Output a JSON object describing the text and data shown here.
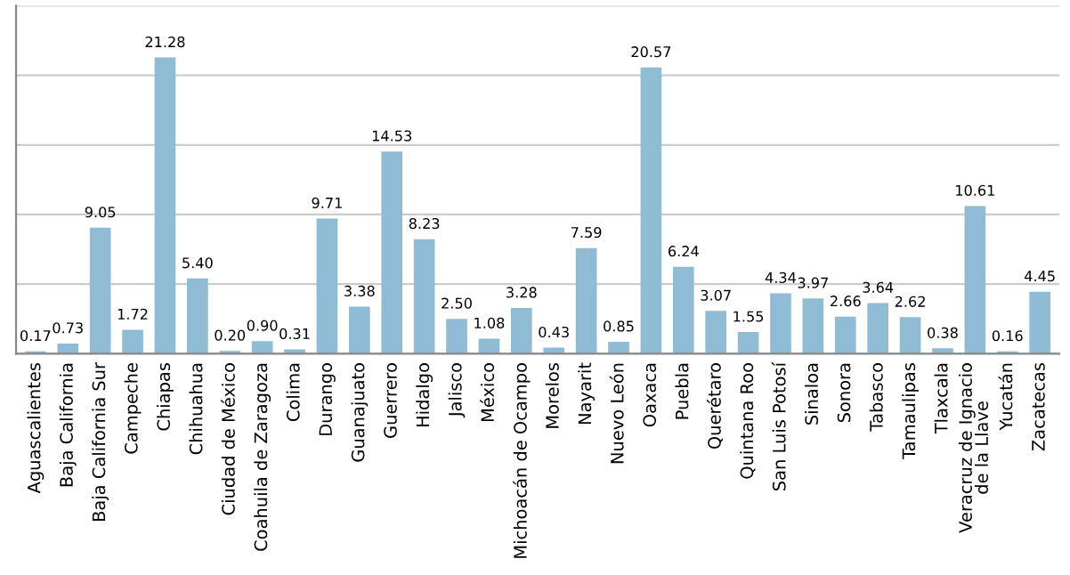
{
  "chart_data": {
    "type": "bar",
    "categories": [
      "Aguascalientes",
      "Baja California",
      "Baja California Sur",
      "Campeche",
      "Chiapas",
      "Chihuahua",
      "Ciudad de México",
      "Coahuila de Zaragoza",
      "Colima",
      "Durango",
      "Guanajuato",
      "Guerrero",
      "Hidalgo",
      "Jalisco",
      "México",
      "Michoacán de Ocampo",
      "Morelos",
      "Nayarit",
      "Nuevo León",
      "Oaxaca",
      "Puebla",
      "Querétaro",
      "Quintana Roo",
      "San Luis Potosí",
      "Sinaloa",
      "Sonora",
      "Tabasco",
      "Tamaulipas",
      "Tlaxcala",
      "Veracruz de Ignacio\nde la Llave",
      "Yucatán",
      "Zacatecas"
    ],
    "values": [
      0.17,
      0.73,
      9.05,
      1.72,
      21.28,
      5.4,
      0.2,
      0.9,
      0.31,
      9.71,
      3.38,
      14.53,
      8.23,
      2.5,
      1.08,
      3.28,
      0.43,
      7.59,
      0.85,
      20.57,
      6.24,
      3.07,
      1.55,
      4.34,
      3.97,
      2.66,
      3.64,
      2.62,
      0.38,
      10.61,
      0.16,
      4.45
    ],
    "value_labels": [
      "0.17",
      "0.73",
      "9.05",
      "1.72",
      "21.28",
      "5.40",
      "0.20",
      "0.90",
      "0.31",
      "9.71",
      "3.38",
      "14.53",
      "8.23",
      "2.50",
      "1.08",
      "3.28",
      "0.43",
      "7.59",
      "0.85",
      "20.57",
      "6.24",
      "3.07",
      "1.55",
      "4.34",
      "3.97",
      "2.66",
      "3.64",
      "2.62",
      "0.38",
      "10.61",
      "0.16",
      "4.45"
    ],
    "color": "#8fbcd4",
    "ylim": [
      0,
      25
    ],
    "yticks": [
      {
        "value": 0,
        "label": null
      },
      {
        "value": 5,
        "label": null
      },
      {
        "value": 10,
        "label": null
      },
      {
        "value": 15,
        "label": null
      },
      {
        "value": 20,
        "label": null
      },
      {
        "value": 25,
        "label": null
      }
    ],
    "grid": "y",
    "tick_labels": "x"
  }
}
